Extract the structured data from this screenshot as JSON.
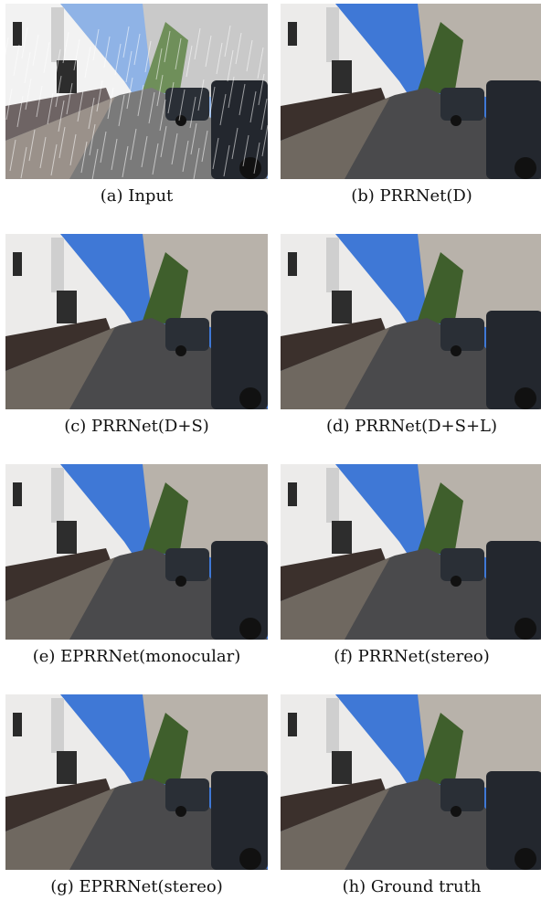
{
  "figure": {
    "panels": [
      {
        "caption": "(a) Input",
        "rain": true,
        "shade": "light"
      },
      {
        "caption": "(b) PRRNet(D)",
        "rain": false,
        "shade": "normal"
      },
      {
        "caption": "(c) PRRNet(D+S)",
        "rain": false,
        "shade": "normal"
      },
      {
        "caption": "(d) PRRNet(D+S+L)",
        "rain": false,
        "shade": "normal"
      },
      {
        "caption": "(e) EPRRNet(monocular)",
        "rain": false,
        "shade": "normal"
      },
      {
        "caption": "(f) PRRNet(stereo)",
        "rain": false,
        "shade": "normal"
      },
      {
        "caption": "(g) EPRRNet(stereo)",
        "rain": false,
        "shade": "normal"
      },
      {
        "caption": "(h) Ground truth",
        "rain": false,
        "shade": "normal"
      }
    ]
  }
}
